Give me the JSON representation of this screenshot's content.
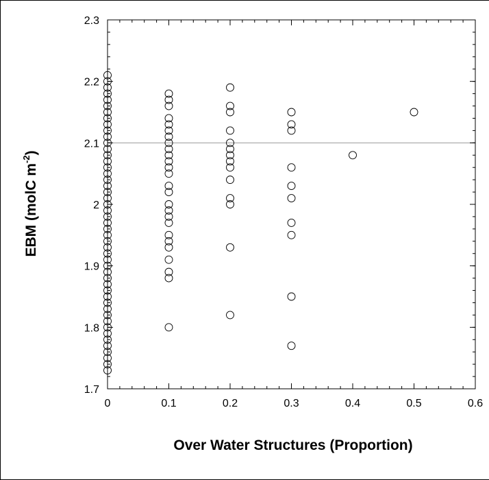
{
  "chart_data": {
    "type": "scatter",
    "title": "",
    "xlabel": "Over Water Structures (Proportion)",
    "ylabel_main": "EBM (molC m",
    "ylabel_sup": "-2",
    "ylabel_close": ")",
    "xlim": [
      0,
      0.6
    ],
    "ylim": [
      1.7,
      2.3
    ],
    "xticks": [
      0,
      0.1,
      0.2,
      0.3,
      0.4,
      0.5,
      0.6
    ],
    "xtick_labels": [
      "0",
      "0.1",
      "0.2",
      "0.3",
      "0.4",
      "0.5",
      "0.6"
    ],
    "yticks": [
      1.7,
      1.8,
      1.9,
      2.0,
      2.1,
      2.2,
      2.3
    ],
    "ytick_labels": [
      "1.7",
      "1.8",
      "1.9",
      "2",
      "2.1",
      "2.2",
      "2.3"
    ],
    "reference_line_y": 2.1,
    "grid": false,
    "series": [
      {
        "marker": "open-circle",
        "points": [
          {
            "x": 0,
            "y": 1.73
          },
          {
            "x": 0,
            "y": 1.74
          },
          {
            "x": 0,
            "y": 1.75
          },
          {
            "x": 0,
            "y": 1.76
          },
          {
            "x": 0,
            "y": 1.77
          },
          {
            "x": 0,
            "y": 1.78
          },
          {
            "x": 0,
            "y": 1.79
          },
          {
            "x": 0,
            "y": 1.8
          },
          {
            "x": 0,
            "y": 1.81
          },
          {
            "x": 0,
            "y": 1.82
          },
          {
            "x": 0,
            "y": 1.83
          },
          {
            "x": 0,
            "y": 1.84
          },
          {
            "x": 0,
            "y": 1.85
          },
          {
            "x": 0,
            "y": 1.86
          },
          {
            "x": 0,
            "y": 1.87
          },
          {
            "x": 0,
            "y": 1.88
          },
          {
            "x": 0,
            "y": 1.89
          },
          {
            "x": 0,
            "y": 1.9
          },
          {
            "x": 0,
            "y": 1.91
          },
          {
            "x": 0,
            "y": 1.92
          },
          {
            "x": 0,
            "y": 1.93
          },
          {
            "x": 0,
            "y": 1.94
          },
          {
            "x": 0,
            "y": 1.95
          },
          {
            "x": 0,
            "y": 1.96
          },
          {
            "x": 0,
            "y": 1.97
          },
          {
            "x": 0,
            "y": 1.98
          },
          {
            "x": 0,
            "y": 1.99
          },
          {
            "x": 0,
            "y": 2.0
          },
          {
            "x": 0,
            "y": 2.01
          },
          {
            "x": 0,
            "y": 2.02
          },
          {
            "x": 0,
            "y": 2.03
          },
          {
            "x": 0,
            "y": 2.04
          },
          {
            "x": 0,
            "y": 2.05
          },
          {
            "x": 0,
            "y": 2.06
          },
          {
            "x": 0,
            "y": 2.07
          },
          {
            "x": 0,
            "y": 2.08
          },
          {
            "x": 0,
            "y": 2.09
          },
          {
            "x": 0,
            "y": 2.1
          },
          {
            "x": 0,
            "y": 2.11
          },
          {
            "x": 0,
            "y": 2.12
          },
          {
            "x": 0,
            "y": 2.13
          },
          {
            "x": 0,
            "y": 2.14
          },
          {
            "x": 0,
            "y": 2.15
          },
          {
            "x": 0,
            "y": 2.16
          },
          {
            "x": 0,
            "y": 2.17
          },
          {
            "x": 0,
            "y": 2.18
          },
          {
            "x": 0,
            "y": 2.19
          },
          {
            "x": 0,
            "y": 2.2
          },
          {
            "x": 0,
            "y": 2.21
          },
          {
            "x": 0.1,
            "y": 1.8
          },
          {
            "x": 0.1,
            "y": 1.88
          },
          {
            "x": 0.1,
            "y": 1.89
          },
          {
            "x": 0.1,
            "y": 1.91
          },
          {
            "x": 0.1,
            "y": 1.93
          },
          {
            "x": 0.1,
            "y": 1.94
          },
          {
            "x": 0.1,
            "y": 1.95
          },
          {
            "x": 0.1,
            "y": 1.97
          },
          {
            "x": 0.1,
            "y": 1.98
          },
          {
            "x": 0.1,
            "y": 1.99
          },
          {
            "x": 0.1,
            "y": 2.0
          },
          {
            "x": 0.1,
            "y": 2.02
          },
          {
            "x": 0.1,
            "y": 2.03
          },
          {
            "x": 0.1,
            "y": 2.05
          },
          {
            "x": 0.1,
            "y": 2.06
          },
          {
            "x": 0.1,
            "y": 2.07
          },
          {
            "x": 0.1,
            "y": 2.08
          },
          {
            "x": 0.1,
            "y": 2.09
          },
          {
            "x": 0.1,
            "y": 2.1
          },
          {
            "x": 0.1,
            "y": 2.11
          },
          {
            "x": 0.1,
            "y": 2.12
          },
          {
            "x": 0.1,
            "y": 2.13
          },
          {
            "x": 0.1,
            "y": 2.14
          },
          {
            "x": 0.1,
            "y": 2.16
          },
          {
            "x": 0.1,
            "y": 2.17
          },
          {
            "x": 0.1,
            "y": 2.18
          },
          {
            "x": 0.2,
            "y": 1.82
          },
          {
            "x": 0.2,
            "y": 1.93
          },
          {
            "x": 0.2,
            "y": 2.0
          },
          {
            "x": 0.2,
            "y": 2.01
          },
          {
            "x": 0.2,
            "y": 2.04
          },
          {
            "x": 0.2,
            "y": 2.06
          },
          {
            "x": 0.2,
            "y": 2.07
          },
          {
            "x": 0.2,
            "y": 2.08
          },
          {
            "x": 0.2,
            "y": 2.09
          },
          {
            "x": 0.2,
            "y": 2.1
          },
          {
            "x": 0.2,
            "y": 2.12
          },
          {
            "x": 0.2,
            "y": 2.15
          },
          {
            "x": 0.2,
            "y": 2.16
          },
          {
            "x": 0.2,
            "y": 2.19
          },
          {
            "x": 0.3,
            "y": 1.77
          },
          {
            "x": 0.3,
            "y": 1.85
          },
          {
            "x": 0.3,
            "y": 1.95
          },
          {
            "x": 0.3,
            "y": 1.97
          },
          {
            "x": 0.3,
            "y": 2.01
          },
          {
            "x": 0.3,
            "y": 2.03
          },
          {
            "x": 0.3,
            "y": 2.06
          },
          {
            "x": 0.3,
            "y": 2.12
          },
          {
            "x": 0.3,
            "y": 2.13
          },
          {
            "x": 0.3,
            "y": 2.15
          },
          {
            "x": 0.4,
            "y": 2.08
          },
          {
            "x": 0.5,
            "y": 2.15
          }
        ]
      }
    ]
  }
}
